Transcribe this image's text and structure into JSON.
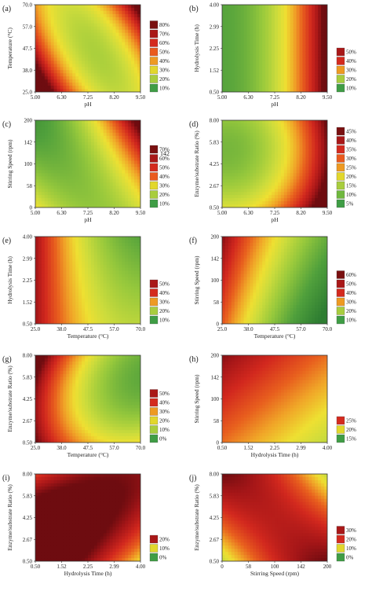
{
  "chart_data": [
    {
      "type": "heatmap",
      "letter": "(a)",
      "xlabel": "pH",
      "ylabel": "Temperature (°C)",
      "xticks": [
        "5.00",
        "6.30",
        "7.25",
        "8.20",
        "9.50"
      ],
      "yticks": [
        "25.0",
        "38.0",
        "47.5",
        "57.0",
        "70.0"
      ],
      "xlim": [
        5.0,
        9.5
      ],
      "ylim": [
        25.0,
        70.0
      ],
      "legend": [
        "80%",
        "70%",
        "60%",
        "50%",
        "40%",
        "30%",
        "20%",
        "10%"
      ],
      "legend_colors": [
        "#7a1010",
        "#a91818",
        "#d42a1e",
        "#ea5a1e",
        "#ee9a22",
        "#e2d72c",
        "#a8cd3e",
        "#3f9d45"
      ],
      "legend_max": 80,
      "scale_max": 85,
      "surface": {
        "type": "quad",
        "c": 30,
        "cx": -8,
        "cy": -2,
        "cxx": 35,
        "cyy": 12,
        "cxy": 30
      }
    },
    {
      "type": "heatmap",
      "letter": "(b)",
      "xlabel": "pH",
      "ylabel": "Hydrolysis Time (h)",
      "xticks": [
        "5.00",
        "6.30",
        "7.25",
        "8.20",
        "9.50"
      ],
      "yticks": [
        "0.50",
        "1.52",
        "2.25",
        "2.99",
        "4.00"
      ],
      "xlim": [
        5.0,
        9.5
      ],
      "ylim": [
        0.5,
        4.0
      ],
      "legend": [
        "50%",
        "40%",
        "30%",
        "20%",
        "10%"
      ],
      "legend_colors": [
        "#a91818",
        "#d42a1e",
        "#ee9a22",
        "#a8cd3e",
        "#3f9d45"
      ],
      "legend_max": 50,
      "scale_max": 55,
      "surface": {
        "type": "quad",
        "c": 22,
        "cx": 25,
        "cy": 0,
        "cxx": 12,
        "cyy": 0,
        "cxy": 0
      }
    },
    {
      "type": "heatmap",
      "letter": "(c)",
      "xlabel": "pH",
      "ylabel": "Stirring Speed (rpm)",
      "xticks": [
        "5.00",
        "6.30",
        "7.25",
        "8.20",
        "9.50"
      ],
      "yticks": [
        "0",
        "58",
        "100",
        "142",
        "200"
      ],
      "xlim": [
        5.0,
        9.5
      ],
      "ylim": [
        0,
        200
      ],
      "legend": [
        "70%",
        "60%",
        "50%",
        "40%",
        "30%",
        "20%",
        "10%"
      ],
      "legend_colors": [
        "#7a1010",
        "#a91818",
        "#d42a1e",
        "#ea5a1e",
        "#e2d72c",
        "#a8cd3e",
        "#3f9d45"
      ],
      "legend_max": 70,
      "scale_max": 75,
      "surface": {
        "type": "quad",
        "c": 22,
        "cx": 18,
        "cy": 5,
        "cxx": 14,
        "cyy": 5,
        "cxy": 20
      }
    },
    {
      "type": "heatmap",
      "letter": "(d)",
      "xlabel": "pH",
      "ylabel": "Enzyme/substrate Ratio (%)",
      "xticks": [
        "5.00",
        "6.30",
        "7.25",
        "8.20",
        "9.50"
      ],
      "yticks": [
        "0.50",
        "2.67",
        "4.25",
        "5.83",
        "8.00"
      ],
      "xlim": [
        5.0,
        9.5
      ],
      "ylim": [
        0.5,
        8.0
      ],
      "legend": [
        "45%",
        "40%",
        "35%",
        "30%",
        "25%",
        "20%",
        "15%",
        "10%",
        "5%"
      ],
      "legend_colors": [
        "#7a1010",
        "#a91818",
        "#d42a1e",
        "#ea5a1e",
        "#ee9a22",
        "#e2d72c",
        "#a8cd3e",
        "#6fb83e",
        "#3f9d45"
      ],
      "legend_max": 45,
      "scale_max": 48,
      "surface": {
        "type": "quad",
        "c": 20,
        "cx": 18,
        "cy": -4,
        "cxx": 10,
        "cyy": 6,
        "cxy": 0
      }
    },
    {
      "type": "heatmap",
      "letter": "(e)",
      "xlabel": "Temperature (°C)",
      "ylabel": "Hydrolysis Time (h)",
      "xticks": [
        "25.0",
        "38.0",
        "47.5",
        "57.0",
        "70.0"
      ],
      "yticks": [
        "0.50",
        "1.52",
        "2.25",
        "2.99",
        "4.00"
      ],
      "xlim": [
        25.0,
        70.0
      ],
      "ylim": [
        0.5,
        4.0
      ],
      "legend": [
        "50%",
        "40%",
        "30%",
        "20%",
        "10%"
      ],
      "legend_colors": [
        "#a91818",
        "#d42a1e",
        "#ee9a22",
        "#a8cd3e",
        "#3f9d45"
      ],
      "legend_max": 50,
      "scale_max": 55,
      "surface": {
        "type": "quad",
        "c": 25,
        "cx": -18,
        "cy": -3,
        "cxx": 8,
        "cyy": 0,
        "cxy": -3
      }
    },
    {
      "type": "heatmap",
      "letter": "(f)",
      "xlabel": "Temperature (°C)",
      "ylabel": "Stirring Speed (rpm)",
      "xticks": [
        "25.0",
        "38.0",
        "47.5",
        "57.0",
        "70.0"
      ],
      "yticks": [
        "0",
        "58",
        "100",
        "142",
        "200"
      ],
      "xlim": [
        25.0,
        70.0
      ],
      "ylim": [
        0,
        200
      ],
      "legend": [
        "60%",
        "50%",
        "40%",
        "30%",
        "20%",
        "10%"
      ],
      "legend_colors": [
        "#7a1010",
        "#a91818",
        "#d42a1e",
        "#ee9a22",
        "#a8cd3e",
        "#3f9d45"
      ],
      "legend_max": 60,
      "scale_max": 65,
      "surface": {
        "type": "quad",
        "c": 25,
        "cx": -25,
        "cy": 8,
        "cxx": 5,
        "cyy": 0,
        "cxy": 0
      }
    },
    {
      "type": "heatmap",
      "letter": "(g)",
      "xlabel": "Temperature (°C)",
      "ylabel": "Enzyme/substrate Ratio (%)",
      "xticks": [
        "25.0",
        "38.0",
        "47.5",
        "57.0",
        "70.0"
      ],
      "yticks": [
        "0.50",
        "2.67",
        "4.25",
        "5.83",
        "8.00"
      ],
      "xlim": [
        25.0,
        70.0
      ],
      "ylim": [
        0.5,
        8.0
      ],
      "legend": [
        "50%",
        "40%",
        "30%",
        "20%",
        "10%",
        "0%"
      ],
      "legend_colors": [
        "#a91818",
        "#d42a1e",
        "#ee9a22",
        "#e2d72c",
        "#a8cd3e",
        "#3f9d45"
      ],
      "legend_max": 50,
      "scale_max": 55,
      "surface": {
        "type": "quad",
        "c": 22,
        "cx": -20,
        "cy": -2,
        "cxx": 10,
        "cyy": 8,
        "cxy": -6
      }
    },
    {
      "type": "heatmap",
      "letter": "(h)",
      "xlabel": "Hydrolysis Time (h)",
      "ylabel": "Stirring Speed (rpm)",
      "xticks": [
        "0.50",
        "1.52",
        "2.25",
        "2.99",
        "4.00"
      ],
      "yticks": [
        "0",
        "58",
        "100",
        "142",
        "200"
      ],
      "xlim": [
        0.5,
        4.0
      ],
      "ylim": [
        0,
        200
      ],
      "legend": [
        "25%",
        "20%",
        "15%"
      ],
      "legend_colors": [
        "#d42a1e",
        "#e2d72c",
        "#3f9d45"
      ],
      "legend_max": 25,
      "scale_max": 28,
      "surface": {
        "type": "quad",
        "c": 19,
        "cx": -4,
        "cy": 4,
        "cxx": 0,
        "cyy": 0,
        "cxy": 0
      }
    },
    {
      "type": "heatmap",
      "letter": "(i)",
      "xlabel": "Hydrolysis Time (h)",
      "ylabel": "Enzyme/substrate Ratio (%)",
      "xticks": [
        "0.50",
        "1.52",
        "2.25",
        "2.99",
        "4.00"
      ],
      "yticks": [
        "0.50",
        "2.67",
        "4.25",
        "5.83",
        "8.00"
      ],
      "xlim": [
        0.5,
        4.0
      ],
      "ylim": [
        0.5,
        8.0
      ],
      "legend": [
        "20%",
        "10%",
        "0%"
      ],
      "legend_colors": [
        "#a91818",
        "#e2d72c",
        "#3f9d45"
      ],
      "legend_max": 20,
      "scale_max": 22,
      "surface": {
        "type": "quad",
        "c": 24,
        "cx": -3,
        "cy": 0,
        "cxx": -2,
        "cyy": -3,
        "cxy": 5
      }
    },
    {
      "type": "heatmap",
      "letter": "(j)",
      "xlabel": "Stirring Speed (rpm)",
      "ylabel": "Enzyme/substrate Ratio (%)",
      "xticks": [
        "0",
        "58",
        "100",
        "142",
        "200"
      ],
      "yticks": [
        "0.50",
        "2.67",
        "4.25",
        "5.83",
        "8.00"
      ],
      "xlim": [
        0,
        200
      ],
      "ylim": [
        0.5,
        8.0
      ],
      "legend": [
        "30%",
        "20%",
        "10%",
        "0%"
      ],
      "legend_colors": [
        "#a91818",
        "#d42a1e",
        "#e2d72c",
        "#3f9d45"
      ],
      "legend_max": 30,
      "scale_max": 33,
      "surface": {
        "type": "quad",
        "c": 29,
        "cx": 0,
        "cy": 0,
        "cxx": -4,
        "cyy": -2,
        "cxy": -10
      }
    }
  ],
  "stray_label": "142"
}
